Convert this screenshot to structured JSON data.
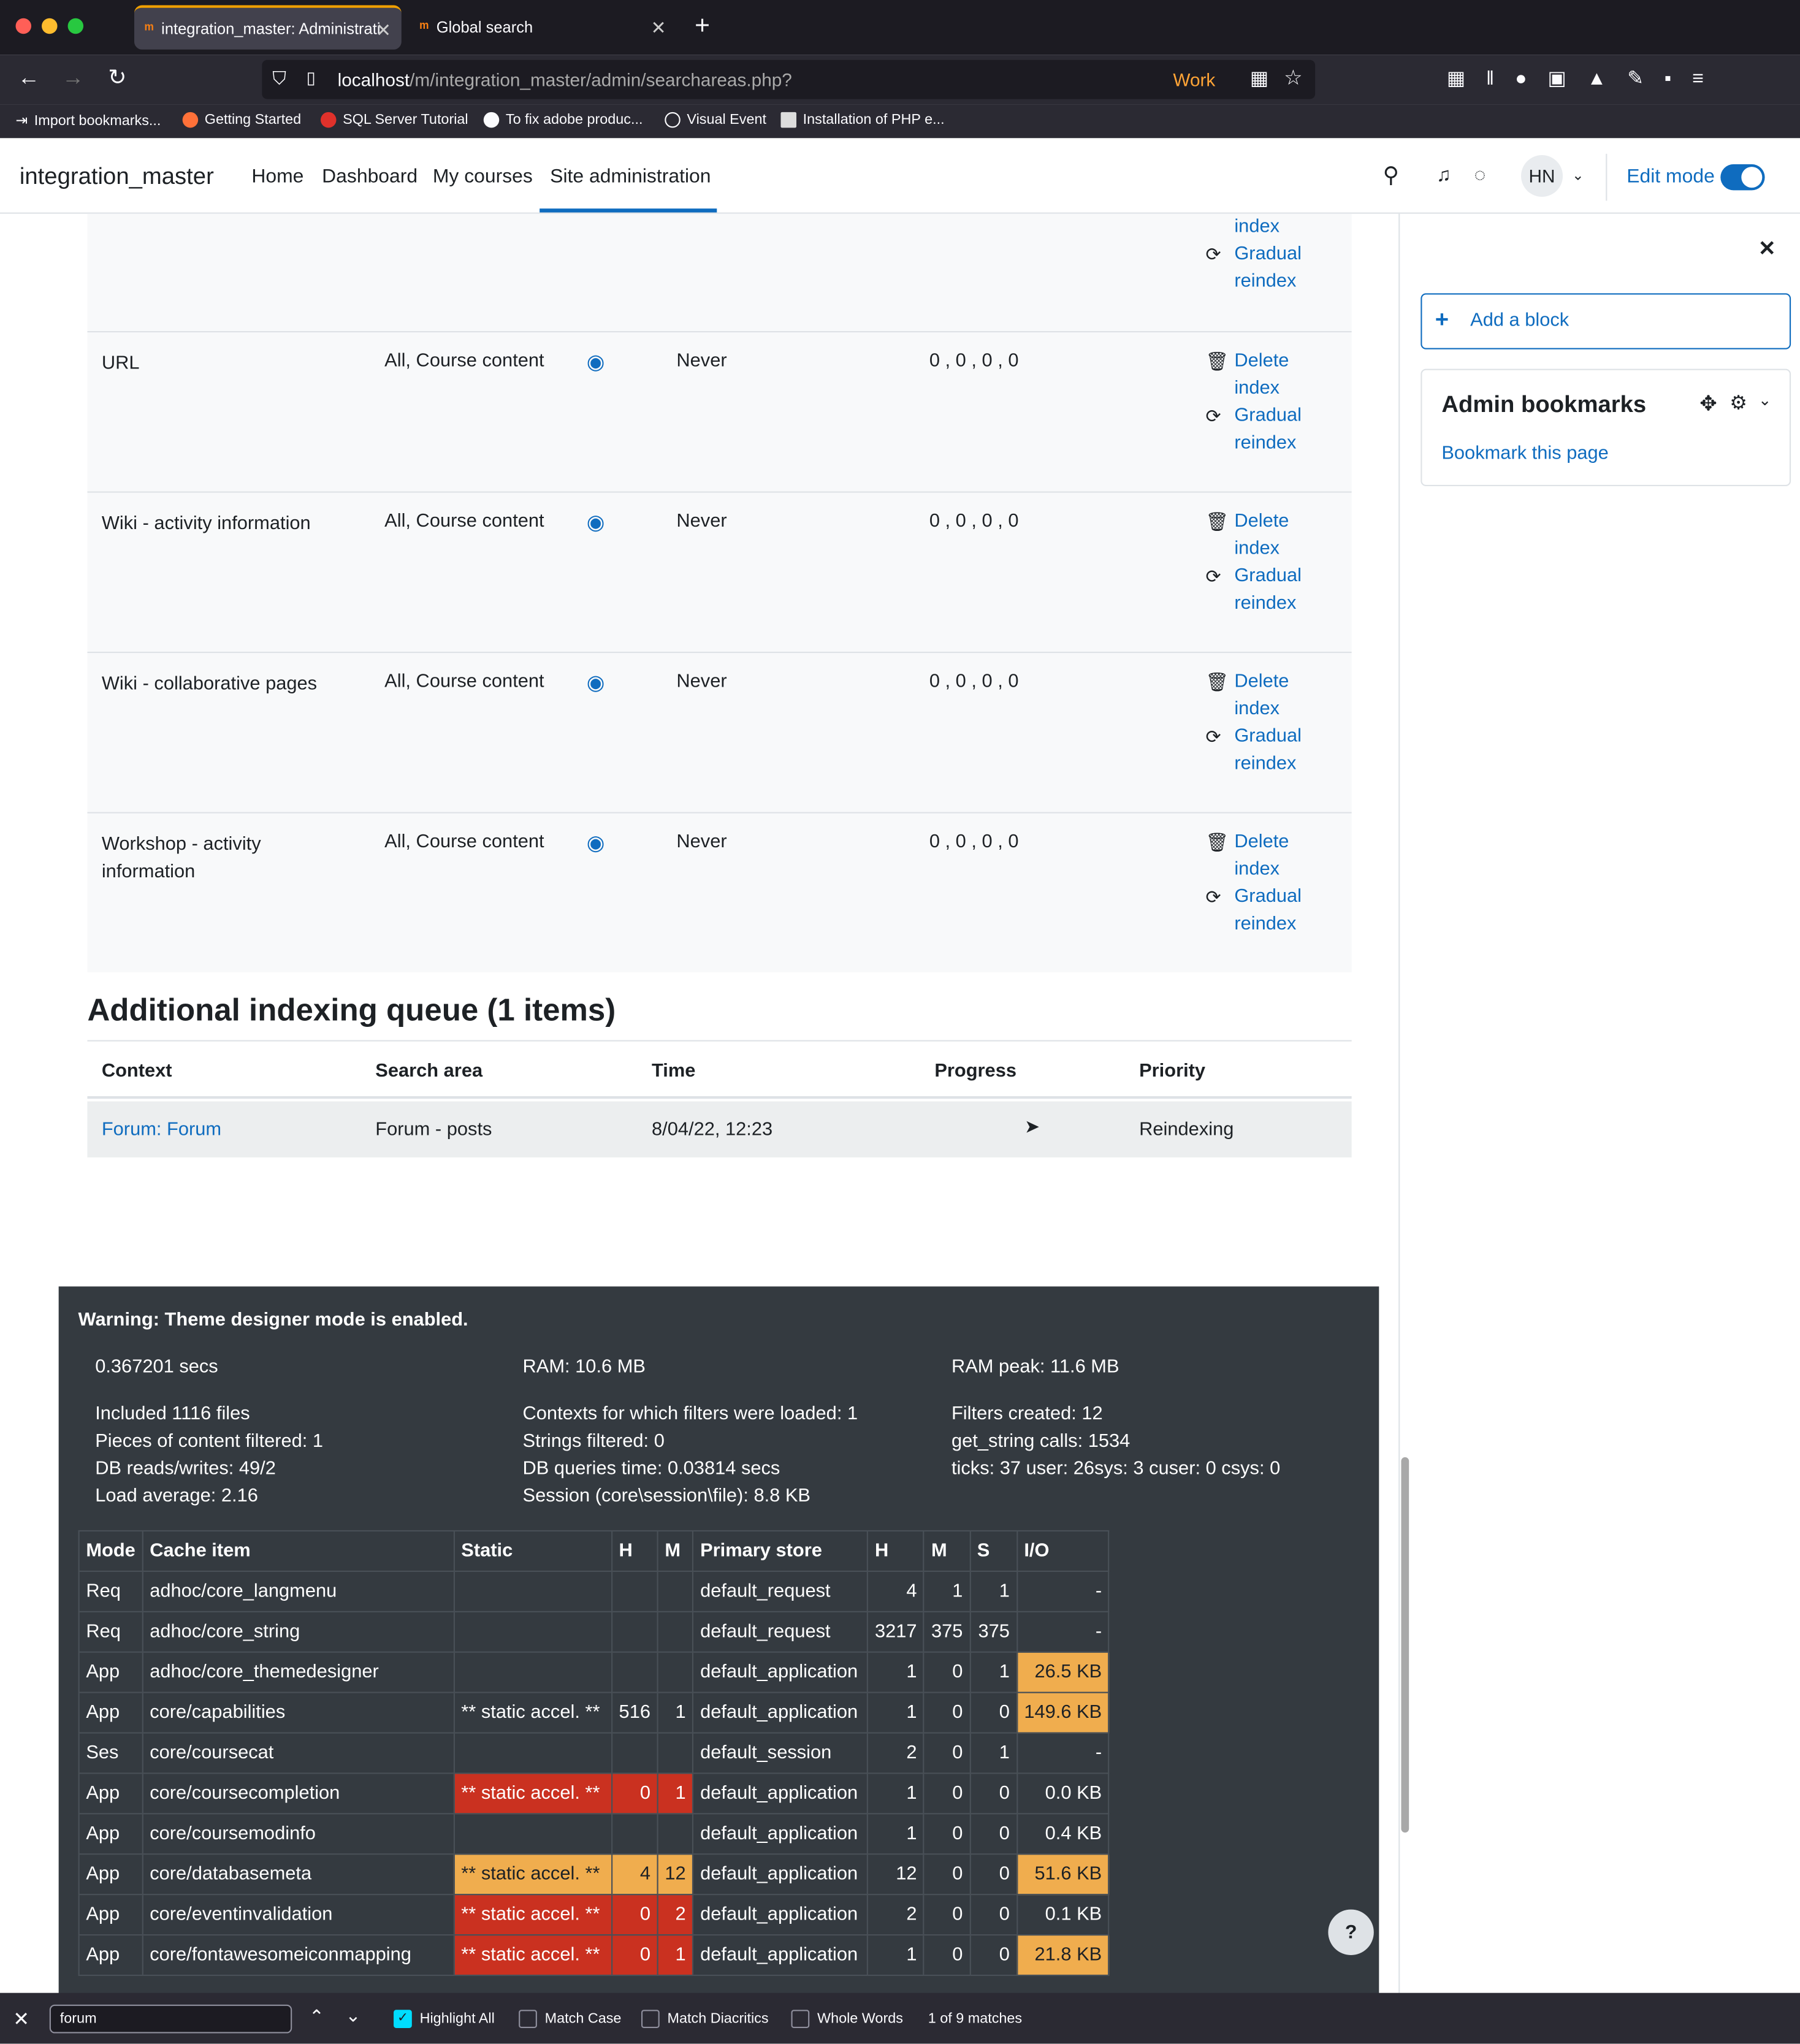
{
  "browser": {
    "tabs": [
      {
        "title": "integration_master: Administrati",
        "active": true
      },
      {
        "title": "Global search",
        "active": false
      }
    ],
    "url_host": "localhost",
    "url_path": "/m/integration_master/admin/searchareas.php?",
    "container_label": "Work",
    "bookmarks": [
      "Import bookmarks...",
      "Getting Started",
      "SQL Server Tutorial",
      "To fix adobe produc...",
      "Visual Event",
      "Installation of PHP e..."
    ]
  },
  "header": {
    "site_name": "integration_master",
    "nav": [
      "Home",
      "Dashboard",
      "My courses",
      "Site administration"
    ],
    "avatar_initials": "HN",
    "edit_mode_label": "Edit mode",
    "edit_mode_on": true
  },
  "search_areas": {
    "top_partial": {
      "action1_tail": "index",
      "action2_line1": "Gradual",
      "action2_line2": "reindex"
    },
    "rows": [
      {
        "name": "URL",
        "name2": "",
        "categories": "All, Course content",
        "last_indexed": "Never",
        "stats": "0 , 0 , 0 , 0",
        "delete1": "Delete",
        "delete2": "index",
        "reindex1": "Gradual",
        "reindex2": "reindex"
      },
      {
        "name": "Wiki - activity information",
        "name2": "",
        "categories": "All, Course content",
        "last_indexed": "Never",
        "stats": "0 , 0 , 0 , 0",
        "delete1": "Delete",
        "delete2": "index",
        "reindex1": "Gradual",
        "reindex2": "reindex"
      },
      {
        "name": "Wiki - collaborative pages",
        "name2": "",
        "categories": "All, Course content",
        "last_indexed": "Never",
        "stats": "0 , 0 , 0 , 0",
        "delete1": "Delete",
        "delete2": "index",
        "reindex1": "Gradual",
        "reindex2": "reindex"
      },
      {
        "name": "Workshop - activity",
        "name2": "information",
        "categories": "All, Course content",
        "last_indexed": "Never",
        "stats": "0 , 0 , 0 , 0",
        "delete1": "Delete",
        "delete2": "index",
        "reindex1": "Gradual",
        "reindex2": "reindex"
      }
    ]
  },
  "queue": {
    "heading": "Additional indexing queue (1 items)",
    "columns": [
      "Context",
      "Search area",
      "Time",
      "Progress",
      "Priority"
    ],
    "row": {
      "context": "Forum: Forum",
      "area": "Forum - posts",
      "time": "8/04/22, 12:23",
      "progress": "",
      "priority": "Reindexing"
    }
  },
  "drawer": {
    "add_block": "Add a block",
    "block_title": "Admin bookmarks",
    "bookmark_link": "Bookmark this page"
  },
  "perf": {
    "warning": "Warning: Theme designer mode is enabled.",
    "col1": [
      "0.367201 secs",
      "Included 1116 files",
      "Pieces of content filtered: 1",
      "DB reads/writes: 49/2",
      "Load average: 2.16"
    ],
    "col2": [
      "RAM: 10.6 MB",
      "Contexts for which filters were loaded: 1",
      "Strings filtered: 0",
      "DB queries time: 0.03814 secs",
      "Session (core\\session\\file): 8.8 KB"
    ],
    "col3": [
      "RAM peak: 11.6 MB",
      "Filters created: 12",
      "get_string calls: 1534",
      "ticks: 37 user: 26sys: 3 cuser: 0 csys: 0"
    ],
    "cache_headers": [
      "Mode",
      "Cache item",
      "Static",
      "H",
      "M",
      "Primary store",
      "H",
      "M",
      "S",
      "I/O"
    ],
    "cache_rows": [
      {
        "mode": "Req",
        "item": "adhoc/core_langmenu",
        "static": "",
        "sh": "",
        "sm": "",
        "store": "default_request",
        "h": "4",
        "m": "1",
        "s": "1",
        "io": "-",
        "static_color": "",
        "io_color": ""
      },
      {
        "mode": "Req",
        "item": "adhoc/core_string",
        "static": "",
        "sh": "",
        "sm": "",
        "store": "default_request",
        "h": "3217",
        "m": "375",
        "s": "375",
        "io": "-",
        "static_color": "",
        "io_color": ""
      },
      {
        "mode": "App",
        "item": "adhoc/core_themedesigner",
        "static": "",
        "sh": "",
        "sm": "",
        "store": "default_application",
        "h": "1",
        "m": "0",
        "s": "1",
        "io": "26.5 KB",
        "static_color": "",
        "io_color": "orange"
      },
      {
        "mode": "App",
        "item": "core/capabilities",
        "static": "** static accel. **",
        "sh": "516",
        "sm": "1",
        "store": "default_application",
        "h": "1",
        "m": "0",
        "s": "0",
        "io": "149.6 KB",
        "static_color": "",
        "io_color": "orange"
      },
      {
        "mode": "Ses",
        "item": "core/coursecat",
        "static": "",
        "sh": "",
        "sm": "",
        "store": "default_session",
        "h": "2",
        "m": "0",
        "s": "1",
        "io": "-",
        "static_color": "",
        "io_color": ""
      },
      {
        "mode": "App",
        "item": "core/coursecompletion",
        "static": "** static accel. **",
        "sh": "0",
        "sm": "1",
        "store": "default_application",
        "h": "1",
        "m": "0",
        "s": "0",
        "io": "0.0 KB",
        "static_color": "red",
        "io_color": ""
      },
      {
        "mode": "App",
        "item": "core/coursemodinfo",
        "static": "",
        "sh": "",
        "sm": "",
        "store": "default_application",
        "h": "1",
        "m": "0",
        "s": "0",
        "io": "0.4 KB",
        "static_color": "",
        "io_color": ""
      },
      {
        "mode": "App",
        "item": "core/databasemeta",
        "static": "** static accel. **",
        "sh": "4",
        "sm": "12",
        "store": "default_application",
        "h": "12",
        "m": "0",
        "s": "0",
        "io": "51.6 KB",
        "static_color": "orange",
        "io_color": "orange"
      },
      {
        "mode": "App",
        "item": "core/eventinvalidation",
        "static": "** static accel. **",
        "sh": "0",
        "sm": "2",
        "store": "default_application",
        "h": "2",
        "m": "0",
        "s": "0",
        "io": "0.1 KB",
        "static_color": "red",
        "io_color": ""
      },
      {
        "mode": "App",
        "item": "core/fontawesomeiconmapping",
        "static": "** static accel. **",
        "sh": "0",
        "sm": "1",
        "store": "default_application",
        "h": "1",
        "m": "0",
        "s": "0",
        "io": "21.8 KB",
        "static_color": "red",
        "io_color": "orange"
      }
    ]
  },
  "findbar": {
    "query": "forum",
    "highlight_all": "Highlight All",
    "match_case": "Match Case",
    "match_diacritics": "Match Diacritics",
    "whole_words": "Whole Words",
    "matches": "1 of 9 matches"
  },
  "help_button": "?",
  "colors": {
    "link": "#0f6cbf",
    "perf_bg": "#343a40",
    "red": "#ca3120",
    "orange": "#f0ad4e"
  }
}
